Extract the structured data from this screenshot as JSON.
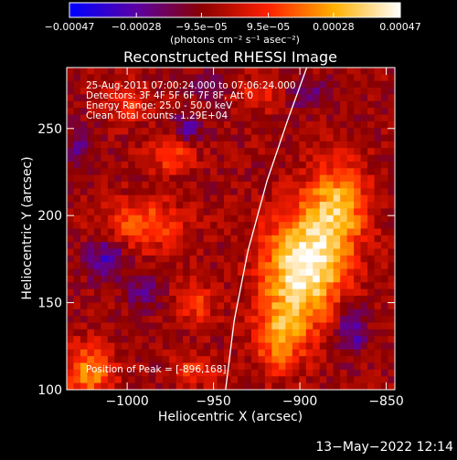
{
  "chart_data": {
    "type": "heatmap",
    "title": "Reconstructed RHESSI Image",
    "xlabel": "Heliocentric X (arcsec)",
    "ylabel": "Heliocentric Y (arcsec)",
    "xlim": [
      -1035,
      -845
    ],
    "ylim": [
      100,
      285
    ],
    "x_ticks": [
      -1000,
      -950,
      -900,
      -850
    ],
    "x_tick_labels": [
      "−1000",
      "−950",
      "−900",
      "−850"
    ],
    "y_ticks": [
      100,
      150,
      200,
      250
    ],
    "y_tick_labels": [
      "100",
      "150",
      "200",
      "250"
    ],
    "annotations": [
      "25-Aug-2011 07:00:24.000 to 07:06:24.000",
      "Detectors: 3F 4F 5F 6F 7F 8F, Att 0",
      "Energy Range: 25.0 - 50.0 keV",
      "Clean     Total counts: 1.29E+04"
    ],
    "peak_label": "Position of Peak = [-896,168]",
    "peak": [
      -896,
      168
    ],
    "limb_curve": [
      [
        -943,
        100
      ],
      [
        -938,
        140
      ],
      [
        -930,
        180
      ],
      [
        -919,
        220
      ],
      [
        -907,
        255
      ],
      [
        -896,
        285
      ]
    ],
    "colorbar": {
      "range": [
        -0.00047,
        0.00047
      ],
      "ticks": [
        -0.00047,
        -0.00028,
        -9.5e-05,
        9.5e-05,
        0.00028,
        0.00047
      ],
      "tick_labels": [
        "−0.00047",
        "−0.00028",
        "−9.5e−05",
        "9.5e−05",
        "0.00028",
        "0.00047"
      ],
      "units": "(photons cm⁻² s⁻¹ asec⁻²)",
      "colors": [
        "#0000ff",
        "#5a00a6",
        "#8a0000",
        "#ff2000",
        "#ffb000",
        "#ffffff"
      ]
    },
    "grid_cells": [
      48,
      48
    ],
    "sources": [
      {
        "x": -898,
        "y": 170,
        "sx": 16,
        "sy": 22,
        "amp": 1.0
      },
      {
        "x": -878,
        "y": 205,
        "sx": 12,
        "sy": 18,
        "amp": 0.65
      },
      {
        "x": -912,
        "y": 130,
        "sx": 10,
        "sy": 14,
        "amp": 0.55
      },
      {
        "x": -990,
        "y": 195,
        "sx": 16,
        "sy": 10,
        "amp": 0.45
      },
      {
        "x": -1022,
        "y": 110,
        "sx": 10,
        "sy": 12,
        "amp": 0.55
      },
      {
        "x": -975,
        "y": 235,
        "sx": 10,
        "sy": 8,
        "amp": 0.35
      },
      {
        "x": -960,
        "y": 150,
        "sx": 8,
        "sy": 8,
        "amp": 0.35
      },
      {
        "x": -1000,
        "y": 265,
        "sx": 9,
        "sy": 8,
        "amp": 0.3
      },
      {
        "x": -960,
        "y": 112,
        "sx": 8,
        "sy": 6,
        "amp": 0.35
      },
      {
        "x": -925,
        "y": 270,
        "sx": 8,
        "sy": 7,
        "amp": 0.3
      }
    ],
    "negative_regions": [
      {
        "x": -1012,
        "y": 175,
        "sx": 8,
        "sy": 8,
        "amp": 0.6
      },
      {
        "x": -990,
        "y": 155,
        "sx": 7,
        "sy": 7,
        "amp": 0.4
      },
      {
        "x": -870,
        "y": 135,
        "sx": 6,
        "sy": 10,
        "amp": 0.6
      },
      {
        "x": -965,
        "y": 250,
        "sx": 6,
        "sy": 6,
        "amp": 0.45
      },
      {
        "x": -950,
        "y": 275,
        "sx": 7,
        "sy": 5,
        "amp": 0.4
      },
      {
        "x": -1028,
        "y": 240,
        "sx": 6,
        "sy": 9,
        "amp": 0.35
      },
      {
        "x": -895,
        "y": 270,
        "sx": 8,
        "sy": 6,
        "amp": 0.4
      }
    ]
  },
  "footer": {
    "timestamp": "13−May−2022 12:14"
  }
}
